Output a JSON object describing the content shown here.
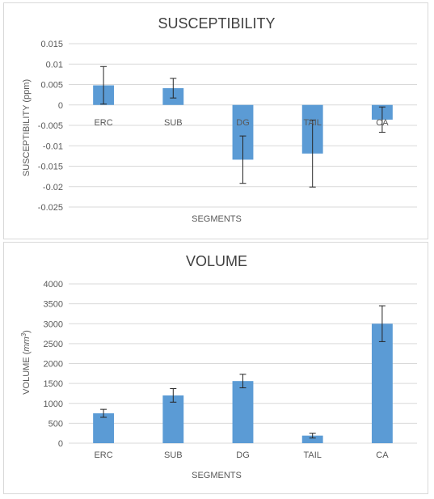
{
  "chart_data": [
    {
      "type": "bar",
      "title": "SUSCEPTIBILITY",
      "xlabel": "SEGMENTS",
      "ylabel": "SUSCEPTIBILITY (ppm)",
      "categories": [
        "ERC",
        "SUB",
        "DG",
        "TAIL",
        "CA"
      ],
      "values": [
        0.0048,
        0.0041,
        -0.0134,
        -0.0119,
        -0.0036
      ],
      "error": [
        0.0046,
        0.0024,
        0.0058,
        0.0082,
        0.0031
      ],
      "ylim": [
        -0.025,
        0.015
      ],
      "yticks": [
        "0.015",
        "0.01",
        "0.005",
        "0",
        "-0.005",
        "-0.01",
        "-0.015",
        "-0.02",
        "-0.025"
      ],
      "grid": true,
      "color": "#5b9bd5"
    },
    {
      "type": "bar",
      "title": "VOLUME",
      "xlabel": "SEGMENTS",
      "ylabel": "VOLUME (mm3)",
      "ylabel_main": "VOLUME (",
      "ylabel_unit": "mm",
      "ylabel_sup": "3",
      "ylabel_end": ")",
      "categories": [
        "ERC",
        "SUB",
        "DG",
        "TAIL",
        "CA"
      ],
      "values": [
        750,
        1200,
        1560,
        190,
        3000
      ],
      "error": [
        100,
        170,
        170,
        60,
        450
      ],
      "ylim": [
        0,
        4000
      ],
      "yticks": [
        "4000",
        "3500",
        "3000",
        "2500",
        "2000",
        "1500",
        "1000",
        "500",
        "0"
      ],
      "grid": true,
      "color": "#5b9bd5"
    }
  ]
}
